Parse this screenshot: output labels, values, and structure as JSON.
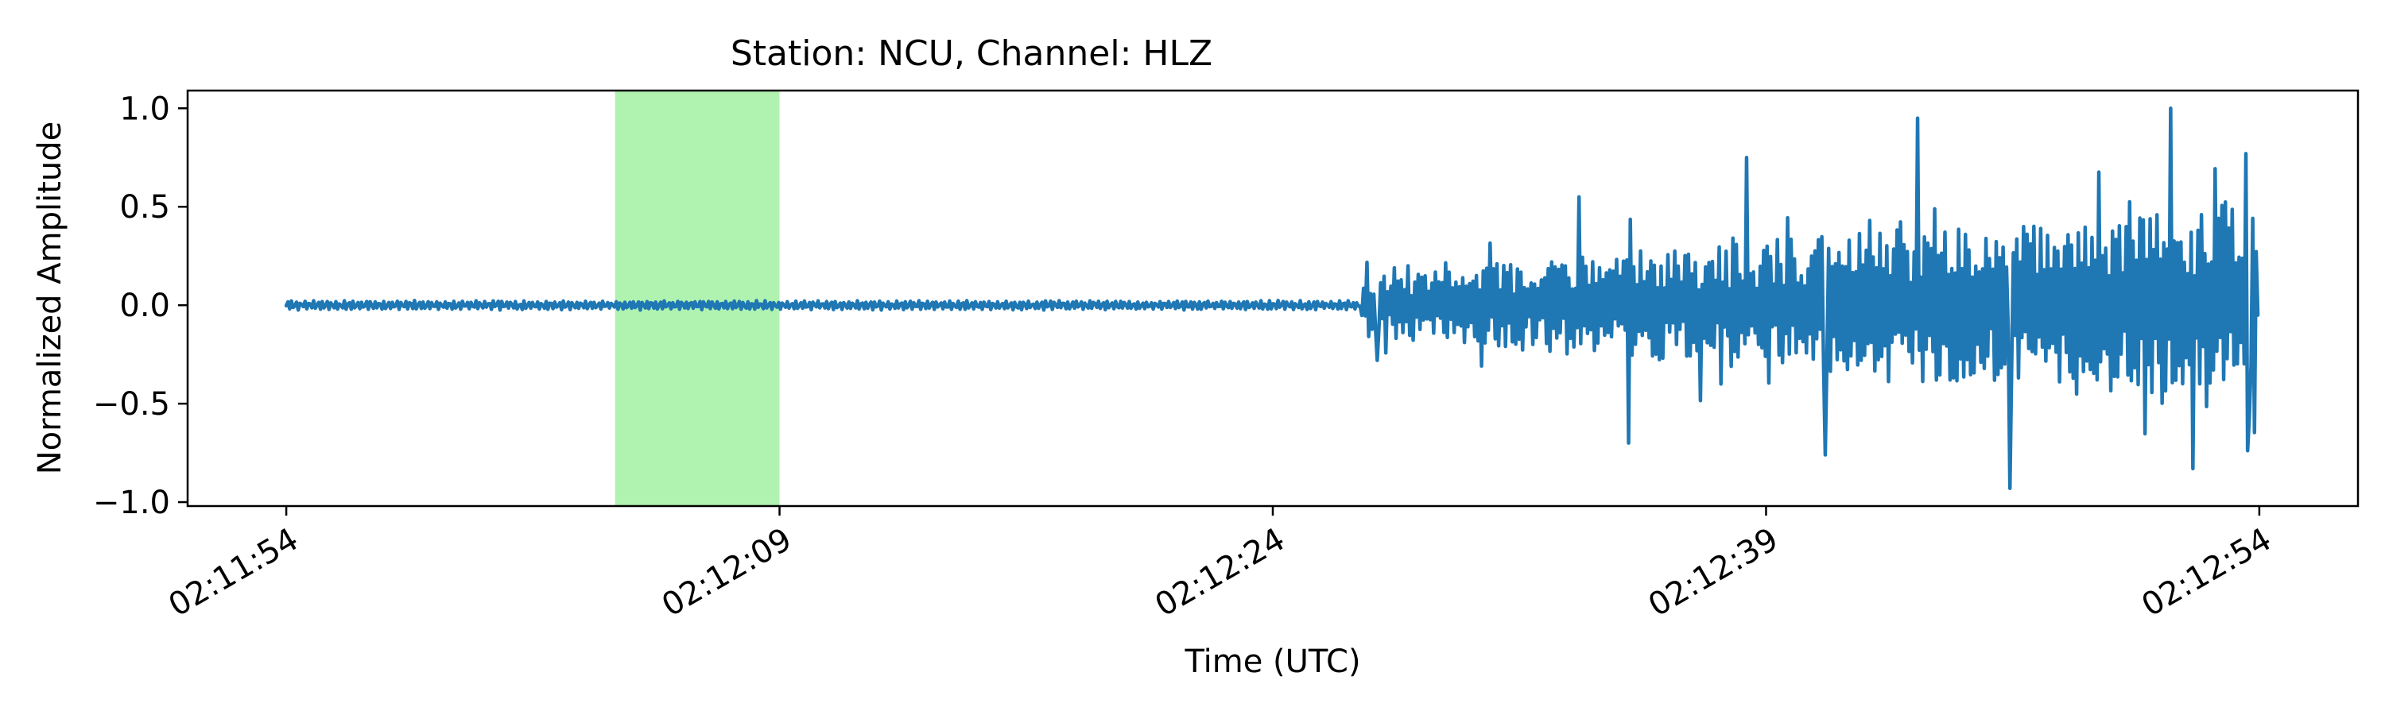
{
  "chart_data": {
    "type": "line",
    "title": "Station: NCU, Channel: HLZ",
    "xlabel": "Time (UTC)",
    "ylabel": "Normalized Amplitude",
    "xlim": [
      "02:11:51",
      "02:12:57"
    ],
    "ylim": [
      -1.02,
      1.09
    ],
    "grid": false,
    "x_ticks": [
      "02:11:54",
      "02:12:09",
      "02:12:24",
      "02:12:39",
      "02:12:54"
    ],
    "y_ticks": [
      1.0,
      0.5,
      0.0,
      -0.5,
      -1.0
    ],
    "y_tick_labels": [
      "1.0",
      "0.5",
      "0.0",
      "−0.5",
      "−1.0"
    ],
    "line_color": "#1f77b4",
    "highlight": {
      "start": "02:12:04",
      "end": "02:12:09",
      "color": "#b0f2b0"
    },
    "series": [
      {
        "start": "02:11:54",
        "end": "02:12:54",
        "onset": "02:12:26.7",
        "pre_onset_amplitude": 0.02,
        "peak_values": [
          {
            "t": "02:12:27.2",
            "v": -0.28
          },
          {
            "t": "02:12:28.1",
            "v": 0.2
          },
          {
            "t": "02:12:33.3",
            "v": 0.55
          },
          {
            "t": "02:12:34.8",
            "v": -0.7
          },
          {
            "t": "02:12:38.4",
            "v": 0.75
          },
          {
            "t": "02:12:40.8",
            "v": -0.76
          },
          {
            "t": "02:12:43.6",
            "v": 0.95
          },
          {
            "t": "02:12:46.4",
            "v": -0.93
          },
          {
            "t": "02:12:51.3",
            "v": 1.0
          },
          {
            "t": "02:12:52.0",
            "v": -0.83
          },
          {
            "t": "02:12:53.6",
            "v": 0.77
          },
          {
            "t": "02:12:53.7",
            "v": -0.57
          },
          {
            "t": "02:12:54.0",
            "v": -0.05
          }
        ]
      }
    ]
  }
}
